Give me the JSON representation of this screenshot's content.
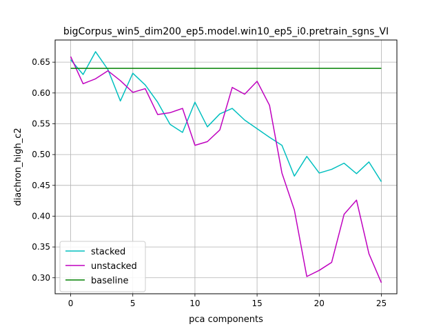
{
  "chart_data": {
    "type": "line",
    "title": "bigCorpus_win5_dim200_ep5.model.win10_ep5_i0.pretrain_sgns_VI",
    "xlabel": "pca components",
    "ylabel": "diachron_high_c2",
    "xlim": [
      -1.25,
      26.25
    ],
    "ylim": [
      0.274,
      0.686
    ],
    "xticks": [
      0,
      5,
      10,
      15,
      20,
      25
    ],
    "yticks": [
      0.3,
      0.35,
      0.4,
      0.45,
      0.5,
      0.55,
      0.6,
      0.65
    ],
    "grid": true,
    "legend_position": "lower-left",
    "x": [
      0,
      1,
      2,
      3,
      4,
      5,
      6,
      7,
      8,
      9,
      10,
      11,
      12,
      13,
      14,
      15,
      16,
      17,
      18,
      19,
      20,
      21,
      22,
      23,
      24,
      25
    ],
    "series": [
      {
        "name": "stacked",
        "color": "#00bfbf",
        "values": [
          0.654,
          0.63,
          0.667,
          0.638,
          0.587,
          0.632,
          0.613,
          0.585,
          0.549,
          0.536,
          0.585,
          0.545,
          0.566,
          0.575,
          0.556,
          0.542,
          0.528,
          0.515,
          0.465,
          0.497,
          0.47,
          0.476,
          0.486,
          0.469,
          0.488,
          0.456
        ]
      },
      {
        "name": "unstacked",
        "color": "#bf00bf",
        "values": [
          0.659,
          0.615,
          0.623,
          0.636,
          0.62,
          0.601,
          0.607,
          0.565,
          0.568,
          0.575,
          0.515,
          0.521,
          0.54,
          0.609,
          0.598,
          0.619,
          0.58,
          0.47,
          0.41,
          0.302,
          0.312,
          0.325,
          0.403,
          0.426,
          0.339,
          0.292
        ]
      },
      {
        "name": "baseline",
        "color": "#008000",
        "values": [
          0.64,
          0.64,
          0.64,
          0.64,
          0.64,
          0.64,
          0.64,
          0.64,
          0.64,
          0.64,
          0.64,
          0.64,
          0.64,
          0.64,
          0.64,
          0.64,
          0.64,
          0.64,
          0.64,
          0.64,
          0.64,
          0.64,
          0.64,
          0.64,
          0.64,
          0.64
        ]
      }
    ]
  }
}
